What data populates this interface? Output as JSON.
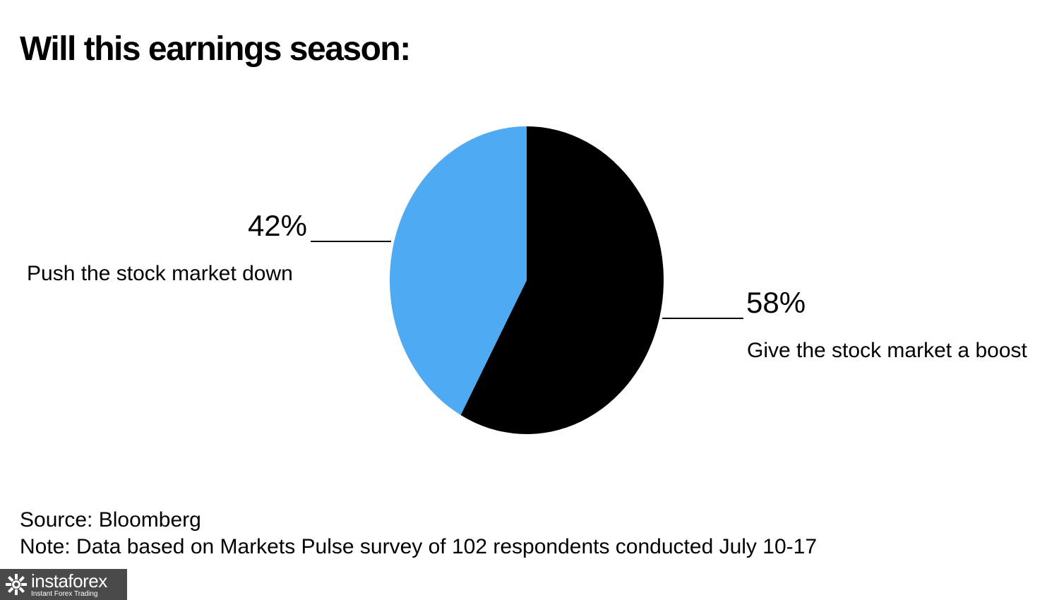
{
  "chart_data": {
    "type": "pie",
    "title": "Will this earnings season:",
    "slices": [
      {
        "label": "Push the stock market down",
        "value": 42,
        "value_label": "42%",
        "color": "#4FAAF4",
        "label_side": "left"
      },
      {
        "label": "Give the stock market a boost",
        "value": 58,
        "value_label": "58%",
        "color": "#000000",
        "label_side": "right"
      }
    ],
    "start": "12 o'clock",
    "direction": "clockwise, second slice first"
  },
  "footer": {
    "source": "Source: Bloomberg",
    "note": "Note: Data based on Markets Pulse survey of 102 respondents conducted July 10-17"
  },
  "watermark": {
    "name": "instaforex",
    "tagline": "Instant Forex Trading",
    "background": "#4A4A4A",
    "icon": "instaforex-logo-icon"
  }
}
